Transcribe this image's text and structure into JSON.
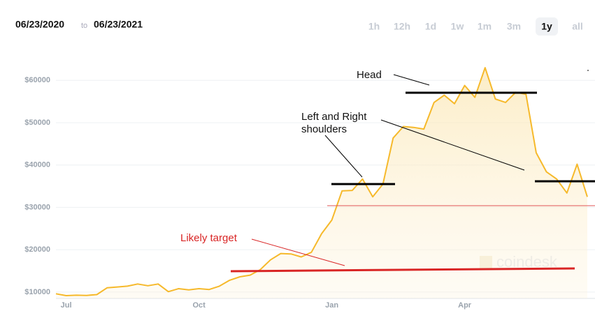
{
  "header": {
    "from": "06/23/2020",
    "to": "to",
    "until": "06/23/2021",
    "ranges": [
      "1h",
      "12h",
      "1d",
      "1w",
      "1m",
      "3m",
      "1y",
      "all"
    ],
    "selected": 6
  },
  "watermark": "coindesk",
  "chart_data": {
    "type": "line",
    "color": "#f6b92b",
    "categories": [
      null,
      "Jul",
      null,
      null,
      null,
      null,
      null,
      null,
      null,
      null,
      null,
      null,
      null,
      null,
      "Oct",
      null,
      null,
      null,
      null,
      null,
      null,
      null,
      null,
      null,
      null,
      null,
      null,
      "Jan",
      null,
      null,
      null,
      null,
      null,
      null,
      null,
      null,
      null,
      null,
      null,
      null,
      "Apr",
      null,
      null,
      null,
      null,
      null,
      null,
      null,
      null,
      null,
      null,
      null,
      null
    ],
    "values": [
      9600,
      9150,
      9250,
      9200,
      9400,
      11000,
      11200,
      11400,
      11900,
      11500,
      11900,
      10100,
      10800,
      10500,
      10800,
      10600,
      11400,
      12800,
      13600,
      14000,
      15300,
      17600,
      19100,
      19000,
      18300,
      19400,
      23800,
      27000,
      33900,
      34000,
      36700,
      32500,
      35500,
      46400,
      49100,
      48900,
      48500,
      54800,
      56500,
      54500,
      58800,
      56000,
      63000,
      55600,
      54800,
      57200,
      56700,
      42900,
      38400,
      36700,
      33400,
      40200,
      32500
    ],
    "ylim": [
      8000,
      64000
    ],
    "yticks": [
      {
        "value": 10000,
        "label": "$10000"
      },
      {
        "value": 20000,
        "label": "$20000"
      },
      {
        "value": 30000,
        "label": "$30000"
      },
      {
        "value": 40000,
        "label": "$40000"
      },
      {
        "value": 50000,
        "label": "$50000"
      },
      {
        "value": 60000,
        "label": "$60000"
      }
    ],
    "grid": true,
    "annotations": {
      "head": "Head",
      "shoulders": [
        "Left and Right",
        "shoulders"
      ],
      "target": "Likely target"
    }
  }
}
